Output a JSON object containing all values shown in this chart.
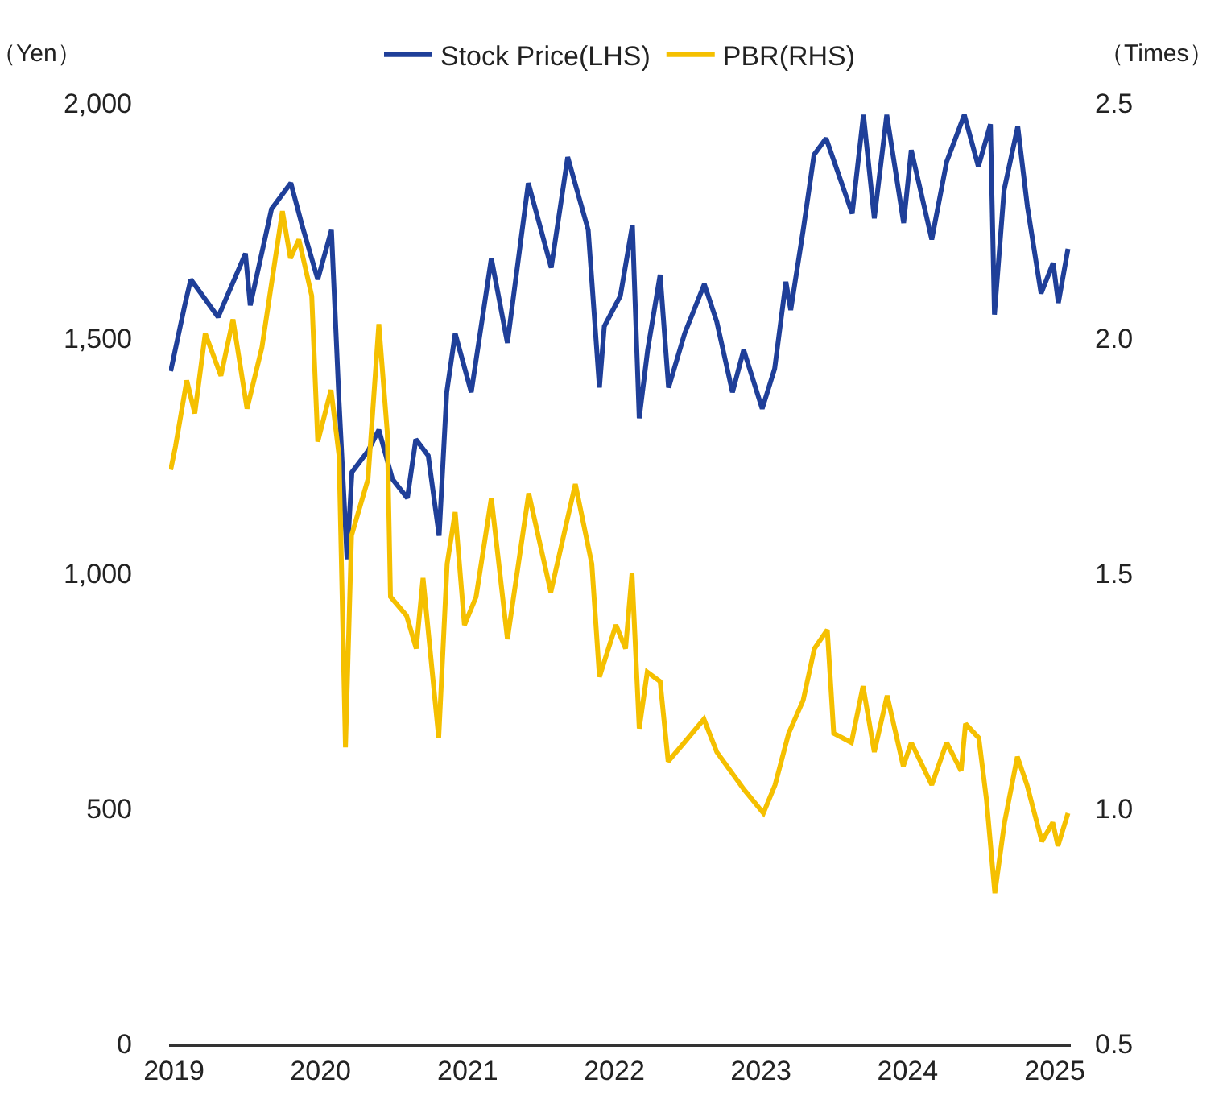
{
  "chart_data": {
    "type": "line",
    "ylabel": "（Yen）",
    "y2label": "（Times）",
    "legend": "top",
    "grid": false,
    "marker": "none",
    "line_style": "solid",
    "xlim": [
      "2018-12-20",
      "2025-02-10"
    ],
    "xticks": [
      {
        "value": "2019",
        "label": "2019"
      },
      {
        "value": "2020",
        "label": "2020"
      },
      {
        "value": "2021",
        "label": "2021"
      },
      {
        "value": "2022",
        "label": "2022"
      },
      {
        "value": "2023",
        "label": "2023"
      },
      {
        "value": "2024",
        "label": "2024"
      },
      {
        "value": "2025",
        "label": "2025"
      }
    ],
    "ylim": [
      0,
      2000
    ],
    "yticks": [
      0,
      500,
      {
        "value": 1000,
        "label": "1,000"
      },
      {
        "value": 1500,
        "label": "1,500"
      },
      {
        "value": 2000,
        "label": "2,000"
      }
    ],
    "y2lim": [
      0.5,
      2.5
    ],
    "y2ticks": [
      0.5,
      {
        "value": 1,
        "label": "1.0"
      },
      1.5,
      {
        "value": 2,
        "label": "2.0"
      },
      2.5
    ],
    "series": [
      {
        "name": "Stock Price(LHS)",
        "color": "#1f3f99",
        "x": [
          "2018-12-24",
          "2019-01-28",
          "2019-02-12",
          "2019-04-21",
          "2019-06-28",
          "2019-07-10",
          "2019-09-01",
          "2019-10-19",
          "2019-11-16",
          "2019-12-25",
          "2020-01-28",
          "2020-02-16",
          "2020-03-07",
          "2020-03-19",
          "2020-04-28",
          "2020-05-25",
          "2020-06-28",
          "2020-08-04",
          "2020-08-25",
          "2020-09-25",
          "2020-10-22",
          "2020-11-10",
          "2020-12-01",
          "2021-01-10",
          "2021-03-01",
          "2021-04-10",
          "2021-06-01",
          "2021-07-28",
          "2021-09-07",
          "2021-10-28",
          "2021-11-25",
          "2021-12-07",
          "2022-01-16",
          "2022-02-15",
          "2022-03-04",
          "2022-03-25",
          "2022-04-25",
          "2022-05-16",
          "2022-06-25",
          "2022-08-13",
          "2022-09-13",
          "2022-10-22",
          "2022-11-19",
          "2023-01-04",
          "2023-02-04",
          "2023-03-04",
          "2023-03-16",
          "2023-04-16",
          "2023-05-13",
          "2023-06-12",
          "2023-08-16",
          "2023-09-13",
          "2023-10-10",
          "2023-11-10",
          "2023-12-22",
          "2024-01-10",
          "2024-03-01",
          "2024-04-07",
          "2024-05-21",
          "2024-06-25",
          "2024-07-25",
          "2024-08-04",
          "2024-08-28",
          "2024-10-01",
          "2024-10-25",
          "2024-11-28",
          "2024-12-28",
          "2025-01-10",
          "2025-02-03"
        ],
        "values": [
          1430,
          1570,
          1625,
          1545,
          1680,
          1570,
          1775,
          1830,
          1740,
          1625,
          1730,
          1365,
          1030,
          1215,
          1260,
          1305,
          1200,
          1160,
          1285,
          1250,
          1080,
          1385,
          1510,
          1385,
          1670,
          1490,
          1830,
          1650,
          1885,
          1730,
          1395,
          1525,
          1590,
          1740,
          1330,
          1475,
          1635,
          1395,
          1510,
          1615,
          1535,
          1385,
          1475,
          1350,
          1435,
          1620,
          1560,
          1730,
          1890,
          1925,
          1765,
          1975,
          1755,
          1975,
          1745,
          1900,
          1710,
          1875,
          1975,
          1865,
          1955,
          1550,
          1815,
          1950,
          1780,
          1595,
          1660,
          1575,
          1690
        ]
      },
      {
        "name": "PBR(RHS)",
        "color": "#f5c000",
        "axis": "y2",
        "x": [
          "2018-12-24",
          "2019-01-05",
          "2019-02-02",
          "2019-02-22",
          "2019-03-20",
          "2019-04-28",
          "2019-05-28",
          "2019-07-02",
          "2019-08-08",
          "2019-09-28",
          "2019-10-18",
          "2019-11-08",
          "2019-12-10",
          "2019-12-25",
          "2020-01-27",
          "2020-02-16",
          "2020-03-03",
          "2020-03-18",
          "2020-04-28",
          "2020-05-25",
          "2020-06-15",
          "2020-06-23",
          "2020-08-02",
          "2020-08-26",
          "2020-09-12",
          "2020-10-21",
          "2020-11-11",
          "2020-12-01",
          "2020-12-24",
          "2021-01-22",
          "2021-03-01",
          "2021-04-10",
          "2021-06-02",
          "2021-07-27",
          "2021-09-26",
          "2021-11-06",
          "2021-11-25",
          "2022-01-05",
          "2022-01-29",
          "2022-02-14",
          "2022-03-04",
          "2022-03-24",
          "2022-04-25",
          "2022-05-15",
          "2022-06-24",
          "2022-08-12",
          "2022-09-13",
          "2022-11-20",
          "2023-01-07",
          "2023-02-05",
          "2023-03-11",
          "2023-04-16",
          "2023-05-14",
          "2023-06-15",
          "2023-07-01",
          "2023-08-14",
          "2023-09-12",
          "2023-10-10",
          "2023-11-11",
          "2023-12-21",
          "2024-01-10",
          "2024-03-01",
          "2024-04-07",
          "2024-05-13",
          "2024-05-24",
          "2024-06-26",
          "2024-07-15",
          "2024-08-05",
          "2024-08-29",
          "2024-09-30",
          "2024-10-24",
          "2024-11-30",
          "2024-12-27",
          "2025-01-09",
          "2025-02-03"
        ],
        "values": [
          1.72,
          1.77,
          1.91,
          1.84,
          2.01,
          1.92,
          2.04,
          1.85,
          1.98,
          2.27,
          2.17,
          2.21,
          2.09,
          1.78,
          1.89,
          1.75,
          1.13,
          1.58,
          1.7,
          2.03,
          1.8,
          1.45,
          1.41,
          1.34,
          1.49,
          1.15,
          1.52,
          1.63,
          1.39,
          1.45,
          1.66,
          1.36,
          1.67,
          1.46,
          1.69,
          1.52,
          1.28,
          1.39,
          1.34,
          1.5,
          1.17,
          1.29,
          1.27,
          1.1,
          1.14,
          1.19,
          1.12,
          1.04,
          0.99,
          1.05,
          1.16,
          1.23,
          1.34,
          1.38,
          1.16,
          1.14,
          1.26,
          1.12,
          1.24,
          1.09,
          1.14,
          1.05,
          1.14,
          1.08,
          1.18,
          1.15,
          1.02,
          0.82,
          0.97,
          1.11,
          1.05,
          0.93,
          0.97,
          0.92,
          0.99
        ]
      }
    ]
  }
}
